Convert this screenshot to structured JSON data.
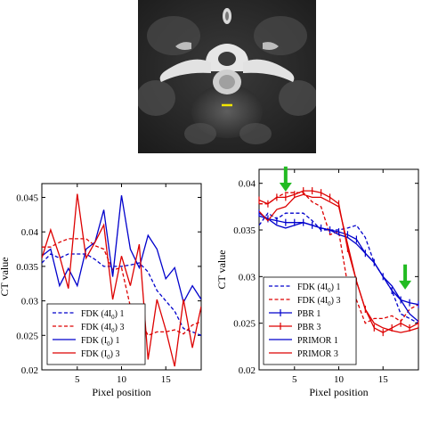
{
  "ct_image": {
    "description": "CT slice with vertebra"
  },
  "chart_data": [
    {
      "type": "line",
      "xlabel": "Pixel position",
      "ylabel": "CT value",
      "xlim": [
        1,
        19
      ],
      "ylim": [
        0.02,
        0.047
      ],
      "xticks": [
        5,
        10,
        15
      ],
      "yticks": [
        0.02,
        0.025,
        0.03,
        0.035,
        0.04,
        0.045
      ],
      "ytick_labels": [
        "0.02",
        "0.025",
        "0.03",
        "0.035",
        "0.04",
        "0.045"
      ],
      "legend_position": "bottom-left",
      "series": [
        {
          "name": "FDK (4I0) 1",
          "label_main": "FDK (4I",
          "label_sub": "0",
          "label_end": ") 1",
          "color": "#0000cc",
          "dash": true,
          "x": [
            1,
            2,
            3,
            4,
            5,
            6,
            7,
            8,
            9,
            10,
            11,
            12,
            13,
            14,
            15,
            16,
            17,
            18,
            19
          ],
          "y": [
            0.0355,
            0.0368,
            0.0362,
            0.0368,
            0.0368,
            0.0368,
            0.036,
            0.035,
            0.035,
            0.035,
            0.0352,
            0.0355,
            0.0342,
            0.0315,
            0.03,
            0.0285,
            0.026,
            0.0255,
            0.025
          ]
        },
        {
          "name": "FDK (4I0) 3",
          "label_main": "FDK (4I",
          "label_sub": "0",
          "label_end": ") 3",
          "color": "#dd0000",
          "dash": true,
          "x": [
            1,
            2,
            3,
            4,
            5,
            6,
            7,
            8,
            9,
            10,
            11,
            12,
            13,
            14,
            15,
            16,
            17,
            18,
            19
          ],
          "y": [
            0.0378,
            0.0378,
            0.0385,
            0.039,
            0.039,
            0.039,
            0.038,
            0.0375,
            0.0345,
            0.0348,
            0.0292,
            0.0275,
            0.025,
            0.0255,
            0.0255,
            0.0258,
            0.0252,
            0.0265,
            0.027
          ]
        },
        {
          "name": "FDK (I0) 1",
          "label_main": "FDK (I",
          "label_sub": "0",
          "label_end": ") 1",
          "color": "#0000cc",
          "dash": false,
          "x": [
            1,
            2,
            3,
            4,
            5,
            6,
            7,
            8,
            9,
            10,
            11,
            12,
            13,
            14,
            15,
            16,
            17,
            18,
            19
          ],
          "y": [
            0.0365,
            0.0375,
            0.0322,
            0.0347,
            0.0322,
            0.0375,
            0.0385,
            0.0432,
            0.0335,
            0.0453,
            0.0375,
            0.0348,
            0.0395,
            0.0375,
            0.0332,
            0.0348,
            0.0298,
            0.0322,
            0.0302
          ]
        },
        {
          "name": "FDK (I0) 3",
          "label_main": "FDK (I",
          "label_sub": "0",
          "label_end": ") 3",
          "color": "#dd0000",
          "dash": false,
          "x": [
            1,
            2,
            3,
            4,
            5,
            6,
            7,
            8,
            9,
            10,
            11,
            12,
            13,
            14,
            15,
            16,
            17,
            18,
            19
          ],
          "y": [
            0.0362,
            0.0403,
            0.0365,
            0.0318,
            0.0455,
            0.0362,
            0.0385,
            0.041,
            0.0302,
            0.0365,
            0.0322,
            0.0382,
            0.0215,
            0.0302,
            0.0258,
            0.0205,
            0.0302,
            0.0232,
            0.0292
          ]
        }
      ]
    },
    {
      "type": "line",
      "xlabel": "Pixel position",
      "ylabel": "CT value",
      "xlim": [
        1,
        19
      ],
      "ylim": [
        0.02,
        0.0415
      ],
      "xticks": [
        5,
        10,
        15
      ],
      "yticks": [
        0.02,
        0.025,
        0.03,
        0.035,
        0.04
      ],
      "ytick_labels": [
        "0.02",
        "0.025",
        "0.03",
        "0.035",
        "0.04"
      ],
      "legend_position": "bottom-left",
      "annotations": [
        {
          "type": "arrow",
          "color": "#22bb22",
          "x": 4,
          "y_tip": 0.0393,
          "y_tail": 0.0418
        },
        {
          "type": "arrow",
          "color": "#22bb22",
          "x": 17.5,
          "y_tip": 0.0288,
          "y_tail": 0.0313
        }
      ],
      "series": [
        {
          "name": "FDK (4I0) 1",
          "label_main": "FDK (4I",
          "label_sub": "0",
          "label_end": ") 1",
          "color": "#0000cc",
          "dash": true,
          "marker": false,
          "x": [
            1,
            2,
            3,
            4,
            5,
            6,
            7,
            8,
            9,
            10,
            11,
            12,
            13,
            14,
            15,
            16,
            17,
            18,
            19
          ],
          "y": [
            0.0355,
            0.0368,
            0.0362,
            0.0368,
            0.0368,
            0.0368,
            0.036,
            0.035,
            0.035,
            0.035,
            0.0352,
            0.0355,
            0.0342,
            0.0315,
            0.03,
            0.0285,
            0.026,
            0.0255,
            0.025
          ]
        },
        {
          "name": "FDK (4I0) 3",
          "label_main": "FDK (4I",
          "label_sub": "0",
          "label_end": ") 3",
          "color": "#dd0000",
          "dash": true,
          "marker": false,
          "x": [
            1,
            2,
            3,
            4,
            5,
            6,
            7,
            8,
            9,
            10,
            11,
            12,
            13,
            14,
            15,
            16,
            17,
            18,
            19
          ],
          "y": [
            0.0378,
            0.0378,
            0.0385,
            0.039,
            0.039,
            0.039,
            0.038,
            0.0375,
            0.0345,
            0.0348,
            0.0292,
            0.0275,
            0.025,
            0.0255,
            0.0255,
            0.0258,
            0.0252,
            0.0265,
            0.027
          ]
        },
        {
          "name": "PBR 1",
          "label_main": "PBR 1",
          "label_sub": "",
          "label_end": "",
          "color": "#0000cc",
          "dash": false,
          "marker": true,
          "x": [
            1,
            2,
            3,
            4,
            5,
            6,
            7,
            8,
            9,
            10,
            11,
            12,
            13,
            14,
            15,
            16,
            17,
            18,
            19
          ],
          "y": [
            0.0368,
            0.0362,
            0.036,
            0.0358,
            0.0358,
            0.0358,
            0.0355,
            0.0352,
            0.035,
            0.0348,
            0.0345,
            0.034,
            0.0325,
            0.0315,
            0.03,
            0.0285,
            0.0275,
            0.0272,
            0.027
          ]
        },
        {
          "name": "PBR 3",
          "label_main": "PBR 3",
          "label_sub": "",
          "label_end": "",
          "color": "#dd0000",
          "dash": false,
          "marker": true,
          "x": [
            1,
            2,
            3,
            4,
            5,
            6,
            7,
            8,
            9,
            10,
            11,
            12,
            13,
            14,
            15,
            16,
            17,
            18,
            19
          ],
          "y": [
            0.0382,
            0.0378,
            0.0385,
            0.0385,
            0.0388,
            0.0392,
            0.0392,
            0.039,
            0.0385,
            0.0378,
            0.033,
            0.0295,
            0.0265,
            0.0245,
            0.024,
            0.0245,
            0.025,
            0.0245,
            0.025
          ]
        },
        {
          "name": "PRIMOR 1",
          "label_main": "PRIMOR 1",
          "label_sub": "",
          "label_end": "",
          "color": "#0000cc",
          "dash": false,
          "marker": false,
          "x": [
            1,
            2,
            3,
            4,
            5,
            6,
            7,
            8,
            9,
            10,
            11,
            12,
            13,
            14,
            15,
            16,
            17,
            18,
            19
          ],
          "y": [
            0.0365,
            0.0362,
            0.0355,
            0.0352,
            0.0355,
            0.0358,
            0.0355,
            0.0352,
            0.035,
            0.0345,
            0.0342,
            0.0335,
            0.0325,
            0.0315,
            0.03,
            0.029,
            0.0275,
            0.026,
            0.0252
          ]
        },
        {
          "name": "PRIMOR 3",
          "label_main": "PRIMOR 3",
          "label_sub": "",
          "label_end": "",
          "color": "#dd0000",
          "dash": false,
          "marker": false,
          "x": [
            1,
            2,
            3,
            4,
            5,
            6,
            7,
            8,
            9,
            10,
            11,
            12,
            13,
            14,
            15,
            16,
            17,
            18,
            19
          ],
          "y": [
            0.037,
            0.036,
            0.0372,
            0.0375,
            0.0385,
            0.0388,
            0.0385,
            0.0385,
            0.038,
            0.0375,
            0.0335,
            0.0295,
            0.0265,
            0.025,
            0.0245,
            0.0242,
            0.024,
            0.0242,
            0.0245
          ]
        }
      ]
    }
  ]
}
